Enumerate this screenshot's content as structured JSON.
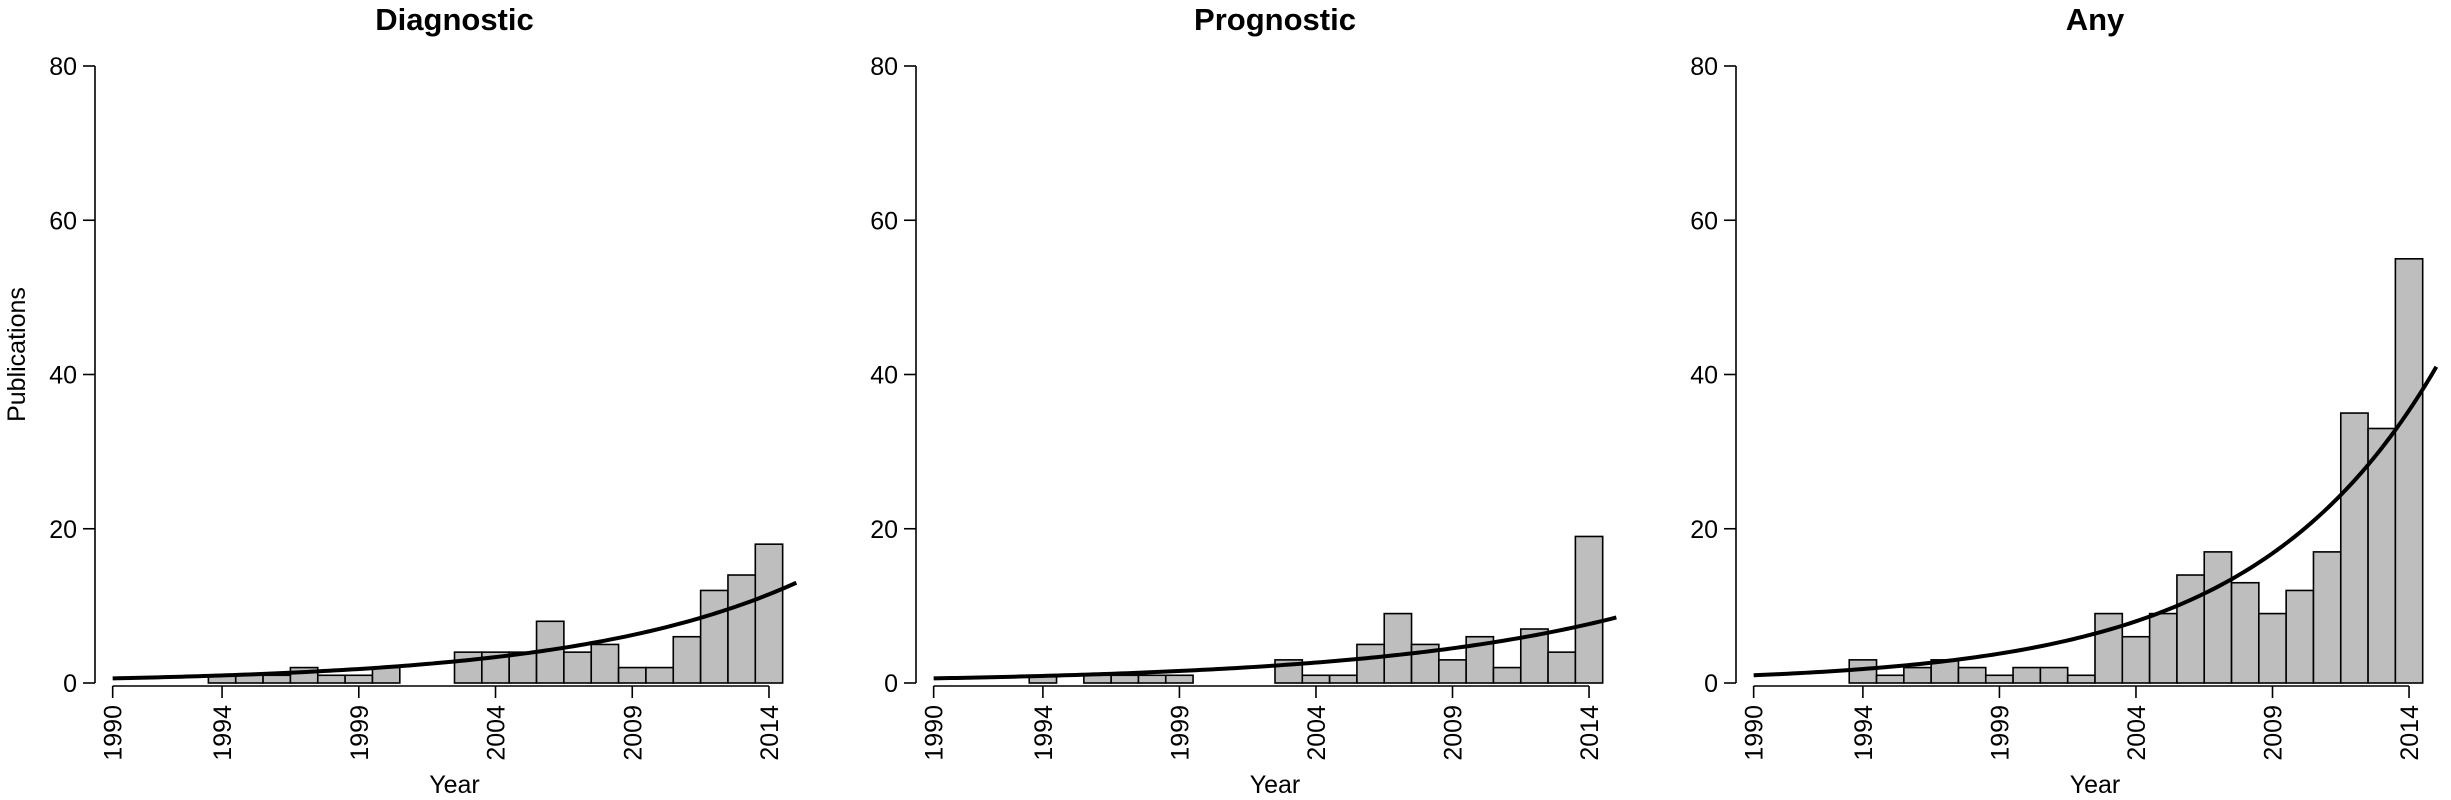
{
  "chart_data": [
    {
      "type": "bar",
      "title": "Diagnostic",
      "xlabel": "Year",
      "ylabel": "Publications",
      "ylim": [
        0,
        80
      ],
      "yticks": [
        0,
        20,
        40,
        60,
        80
      ],
      "xlim": [
        1989.5,
        2015.5
      ],
      "xticks": [
        1990,
        1994,
        1999,
        2004,
        2009,
        2014
      ],
      "x": [
        1990,
        1991,
        1992,
        1993,
        1994,
        1995,
        1996,
        1997,
        1998,
        1999,
        2000,
        2001,
        2002,
        2003,
        2004,
        2005,
        2006,
        2007,
        2008,
        2009,
        2010,
        2011,
        2012,
        2013,
        2014
      ],
      "values": [
        0,
        0,
        0,
        0,
        1,
        1,
        1,
        2,
        1,
        1,
        2,
        0,
        0,
        4,
        4,
        4,
        8,
        4,
        5,
        2,
        2,
        6,
        12,
        14,
        18
      ],
      "trend": {
        "type": "exponential",
        "x": [
          1990,
          2015
        ],
        "y": [
          0.6,
          13
        ]
      },
      "colors": {
        "bar_fill": "#bebebe",
        "bar_stroke": "#000000",
        "trend": "#000000"
      }
    },
    {
      "type": "bar",
      "title": "Prognostic",
      "xlabel": "Year",
      "ylabel": "",
      "ylim": [
        0,
        80
      ],
      "yticks": [
        0,
        20,
        40,
        60,
        80
      ],
      "xlim": [
        1989.5,
        2015.5
      ],
      "xticks": [
        1990,
        1994,
        1999,
        2004,
        2009,
        2014
      ],
      "x": [
        1990,
        1991,
        1992,
        1993,
        1994,
        1995,
        1996,
        1997,
        1998,
        1999,
        2000,
        2001,
        2002,
        2003,
        2004,
        2005,
        2006,
        2007,
        2008,
        2009,
        2010,
        2011,
        2012,
        2013,
        2014
      ],
      "values": [
        0,
        0,
        0,
        0,
        1,
        0,
        1,
        1,
        1,
        1,
        0,
        0,
        0,
        3,
        1,
        1,
        5,
        9,
        5,
        3,
        6,
        2,
        7,
        4,
        19
      ],
      "trend": {
        "type": "exponential",
        "x": [
          1990,
          2015
        ],
        "y": [
          0.6,
          8.5
        ]
      },
      "colors": {
        "bar_fill": "#bebebe",
        "bar_stroke": "#000000",
        "trend": "#000000"
      }
    },
    {
      "type": "bar",
      "title": "Any",
      "xlabel": "Year",
      "ylabel": "",
      "ylim": [
        0,
        80
      ],
      "yticks": [
        0,
        20,
        40,
        60,
        80
      ],
      "xlim": [
        1989.5,
        2015.5
      ],
      "xticks": [
        1990,
        1994,
        1999,
        2004,
        2009,
        2014
      ],
      "x": [
        1990,
        1991,
        1992,
        1993,
        1994,
        1995,
        1996,
        1997,
        1998,
        1999,
        2000,
        2001,
        2002,
        2003,
        2004,
        2005,
        2006,
        2007,
        2008,
        2009,
        2010,
        2011,
        2012,
        2013,
        2014
      ],
      "values": [
        0,
        0,
        0,
        0,
        3,
        1,
        2,
        3,
        2,
        1,
        2,
        2,
        1,
        9,
        6,
        9,
        14,
        17,
        13,
        9,
        12,
        17,
        35,
        33,
        55
      ],
      "trend": {
        "type": "exponential",
        "x": [
          1990,
          2015
        ],
        "y": [
          1.0,
          41
        ]
      },
      "colors": {
        "bar_fill": "#bebebe",
        "bar_stroke": "#000000",
        "trend": "#000000"
      }
    }
  ]
}
